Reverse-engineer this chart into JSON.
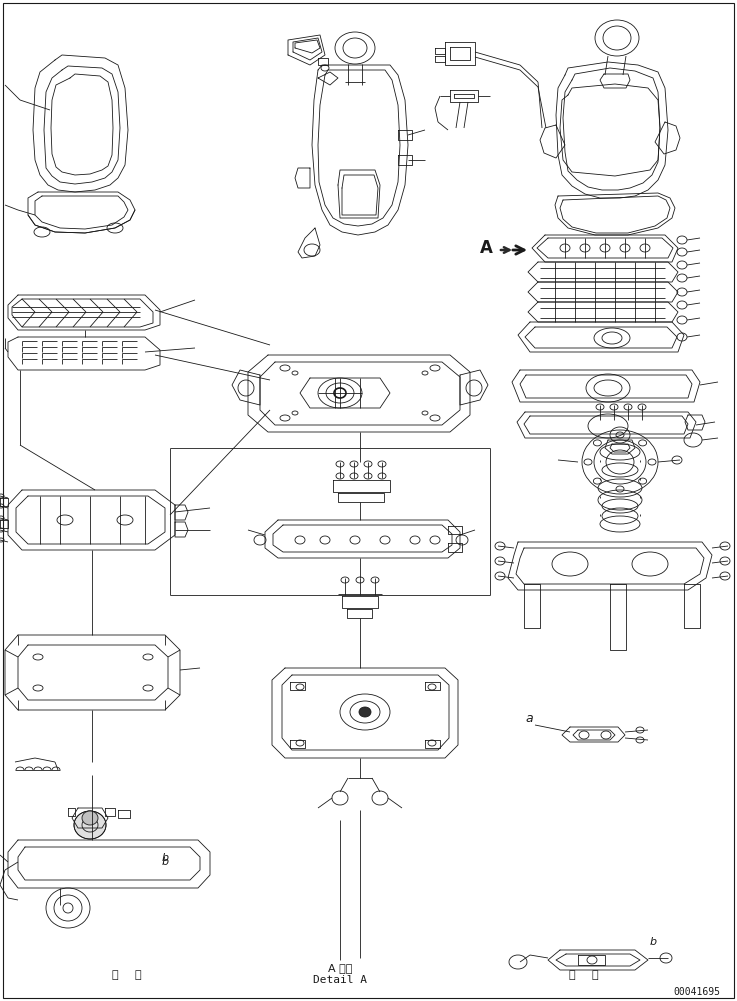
{
  "background_color": "#ffffff",
  "line_color": "#1a1a1a",
  "fig_width": 7.37,
  "fig_height": 10.01,
  "dpi": 100,
  "bottom_text_line1": "A 詳細",
  "bottom_text_line2": "Detail A",
  "part_number": "00041695",
  "label_a": "A",
  "label_a2": "a",
  "label_b1": "b",
  "label_b2": "b"
}
